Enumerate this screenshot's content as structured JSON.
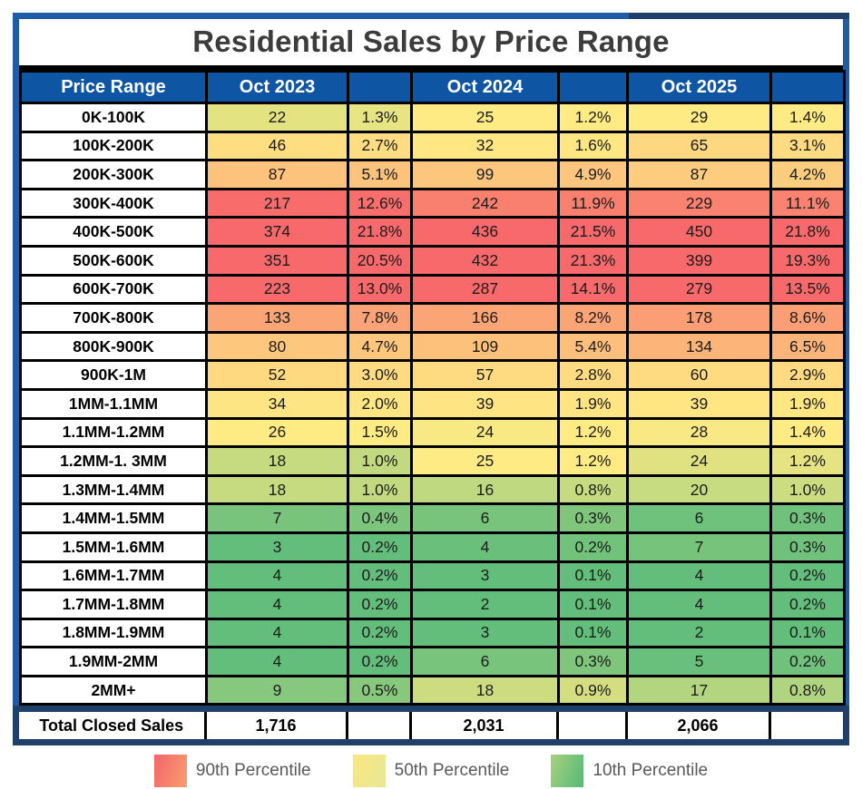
{
  "title": "Residential Sales by Price Range",
  "header": {
    "price_range": "Price Range",
    "year_cols": [
      "Oct 2023",
      "Oct 2024",
      "Oct 2025"
    ]
  },
  "total_label": "Total Closed Sales",
  "colors": {
    "frame_blue": "#1E5CA6",
    "frame_navy": "#1F4069",
    "header_bg": "#0E56A3",
    "header_text": "#FFFFFF",
    "title_text": "#3C3C3C",
    "grid_line": "#000000",
    "legend_text": "#595959",
    "scale_red": "#F8696B",
    "scale_yellow": "#FFEB84",
    "scale_green": "#63BE7B"
  },
  "legend": [
    {
      "label": "90th Percentile",
      "from": "#F3656A",
      "to": "#F89E70"
    },
    {
      "label": "50th Percentile",
      "from": "#FBE77F",
      "to": "#E7E798"
    },
    {
      "label": "10th Percentile",
      "from": "#A6D27F",
      "to": "#55B977"
    }
  ],
  "chart_data": {
    "type": "heatmap",
    "title": "Residential Sales by Price Range",
    "categories": [
      "0K-100K",
      "100K-200K",
      "200K-300K",
      "300K-400K",
      "400K-500K",
      "500K-600K",
      "600K-700K",
      "700K-800K",
      "800K-900K",
      "900K-1M",
      "1MM-1.1MM",
      "1.1MM-1.2MM",
      "1.2MM-1. 3MM",
      "1.3MM-1.4MM",
      "1.4MM-1.5MM",
      "1.5MM-1.6MM",
      "1.6MM-1.7MM",
      "1.7MM-1.8MM",
      "1.8MM-1.9MM",
      "1.9MM-2MM",
      "2MM+"
    ],
    "legend_labels": [
      "90th Percentile",
      "50th Percentile",
      "10th Percentile"
    ],
    "series": [
      {
        "name": "Oct 2023",
        "counts": [
          22,
          46,
          87,
          217,
          374,
          351,
          223,
          133,
          80,
          52,
          34,
          26,
          18,
          18,
          7,
          3,
          4,
          4,
          4,
          4,
          9
        ],
        "pcts": [
          "1.3%",
          "2.7%",
          "5.1%",
          "12.6%",
          "21.8%",
          "20.5%",
          "13.0%",
          "7.8%",
          "4.7%",
          "3.0%",
          "2.0%",
          "1.5%",
          "1.0%",
          "1.0%",
          "0.4%",
          "0.2%",
          "0.2%",
          "0.2%",
          "0.2%",
          "0.2%",
          "0.5%"
        ],
        "count_colors": [
          "#E3E382",
          "#FEDE81",
          "#FDC37C",
          "#F86D6C",
          "#F8696B",
          "#F8696B",
          "#F8696B",
          "#FBA476",
          "#FDC77D",
          "#FED980",
          "#FEE583",
          "#FFEB84",
          "#C6DA80",
          "#C6DA80",
          "#78C47C",
          "#63BE7B",
          "#63BE7B",
          "#63BE7B",
          "#63BE7B",
          "#63BE7B",
          "#86C87D"
        ],
        "pct_colors": [
          "#E7E483",
          "#FEDC81",
          "#FDC27C",
          "#F86E6C",
          "#F8696B",
          "#F8696B",
          "#F8696B",
          "#FBA376",
          "#FDC67D",
          "#FEDA80",
          "#FEE583",
          "#FFEB84",
          "#C3D980",
          "#C3D980",
          "#7BC57C",
          "#63BE7B",
          "#63BE7B",
          "#63BE7B",
          "#63BE7B",
          "#63BE7B",
          "#87C87D"
        ],
        "total": "1,716"
      },
      {
        "name": "Oct 2024",
        "counts": [
          25,
          32,
          99,
          242,
          436,
          432,
          287,
          166,
          109,
          57,
          39,
          24,
          25,
          16,
          6,
          4,
          3,
          2,
          3,
          6,
          18
        ],
        "pcts": [
          "1.2%",
          "1.6%",
          "4.9%",
          "11.9%",
          "21.5%",
          "21.3%",
          "14.1%",
          "8.2%",
          "5.4%",
          "2.8%",
          "1.9%",
          "1.2%",
          "1.2%",
          "0.8%",
          "0.3%",
          "0.2%",
          "0.1%",
          "0.1%",
          "0.1%",
          "0.3%",
          "0.9%"
        ],
        "count_colors": [
          "#FFEB84",
          "#FFE783",
          "#FDC67D",
          "#F97F6F",
          "#F8696B",
          "#F8696B",
          "#F8696B",
          "#FBA577",
          "#FDC17C",
          "#FEDB81",
          "#FEE483",
          "#F8E984",
          "#FFEB84",
          "#BFD980",
          "#78C47C",
          "#6AC07B",
          "#63BE7B",
          "#63BE7B",
          "#63BE7B",
          "#78C47C",
          "#CDDC81"
        ],
        "pct_colors": [
          "#FFEB84",
          "#FEE783",
          "#FDC57D",
          "#F97F6F",
          "#F8696B",
          "#F8696B",
          "#F8696B",
          "#FBA476",
          "#FDC07C",
          "#FEDB81",
          "#FEE483",
          "#FFEB84",
          "#FFEB84",
          "#C6DA80",
          "#7FC67C",
          "#71C27B",
          "#63BE7B",
          "#63BE7B",
          "#63BE7B",
          "#7FC67C",
          "#D4DE81"
        ],
        "total": "2,031"
      },
      {
        "name": "Oct 2025",
        "counts": [
          29,
          65,
          87,
          229,
          450,
          399,
          279,
          178,
          134,
          60,
          39,
          28,
          24,
          20,
          6,
          7,
          4,
          4,
          2,
          5,
          17
        ],
        "pcts": [
          "1.4%",
          "3.1%",
          "4.2%",
          "11.1%",
          "21.8%",
          "19.3%",
          "13.5%",
          "8.6%",
          "6.5%",
          "2.9%",
          "1.9%",
          "1.4%",
          "1.2%",
          "1.0%",
          "0.3%",
          "0.3%",
          "0.2%",
          "0.2%",
          "0.1%",
          "0.2%",
          "0.8%"
        ],
        "count_colors": [
          "#FFEB84",
          "#FED880",
          "#FDCC7E",
          "#F98370",
          "#F8696B",
          "#F8696B",
          "#F8696B",
          "#FB9D75",
          "#FCB479",
          "#FEDB81",
          "#FFE683",
          "#F9E984",
          "#E0E282",
          "#C7DB81",
          "#6FC27C",
          "#76C37C",
          "#63BE7B",
          "#63BE7B",
          "#63BE7B",
          "#69C07C",
          "#B4D580"
        ],
        "pct_colors": [
          "#FFEB84",
          "#FEDA80",
          "#FDCD7E",
          "#F98370",
          "#F8696B",
          "#F8696B",
          "#F8696B",
          "#FB9D75",
          "#FCB479",
          "#FEDB81",
          "#FEE683",
          "#FFEB84",
          "#E5E382",
          "#CBDC81",
          "#6FC17C",
          "#6FC17C",
          "#63BE7B",
          "#63BE7B",
          "#63BE7B",
          "#6FC17C",
          "#B1D480"
        ],
        "total": "2,066"
      }
    ]
  }
}
